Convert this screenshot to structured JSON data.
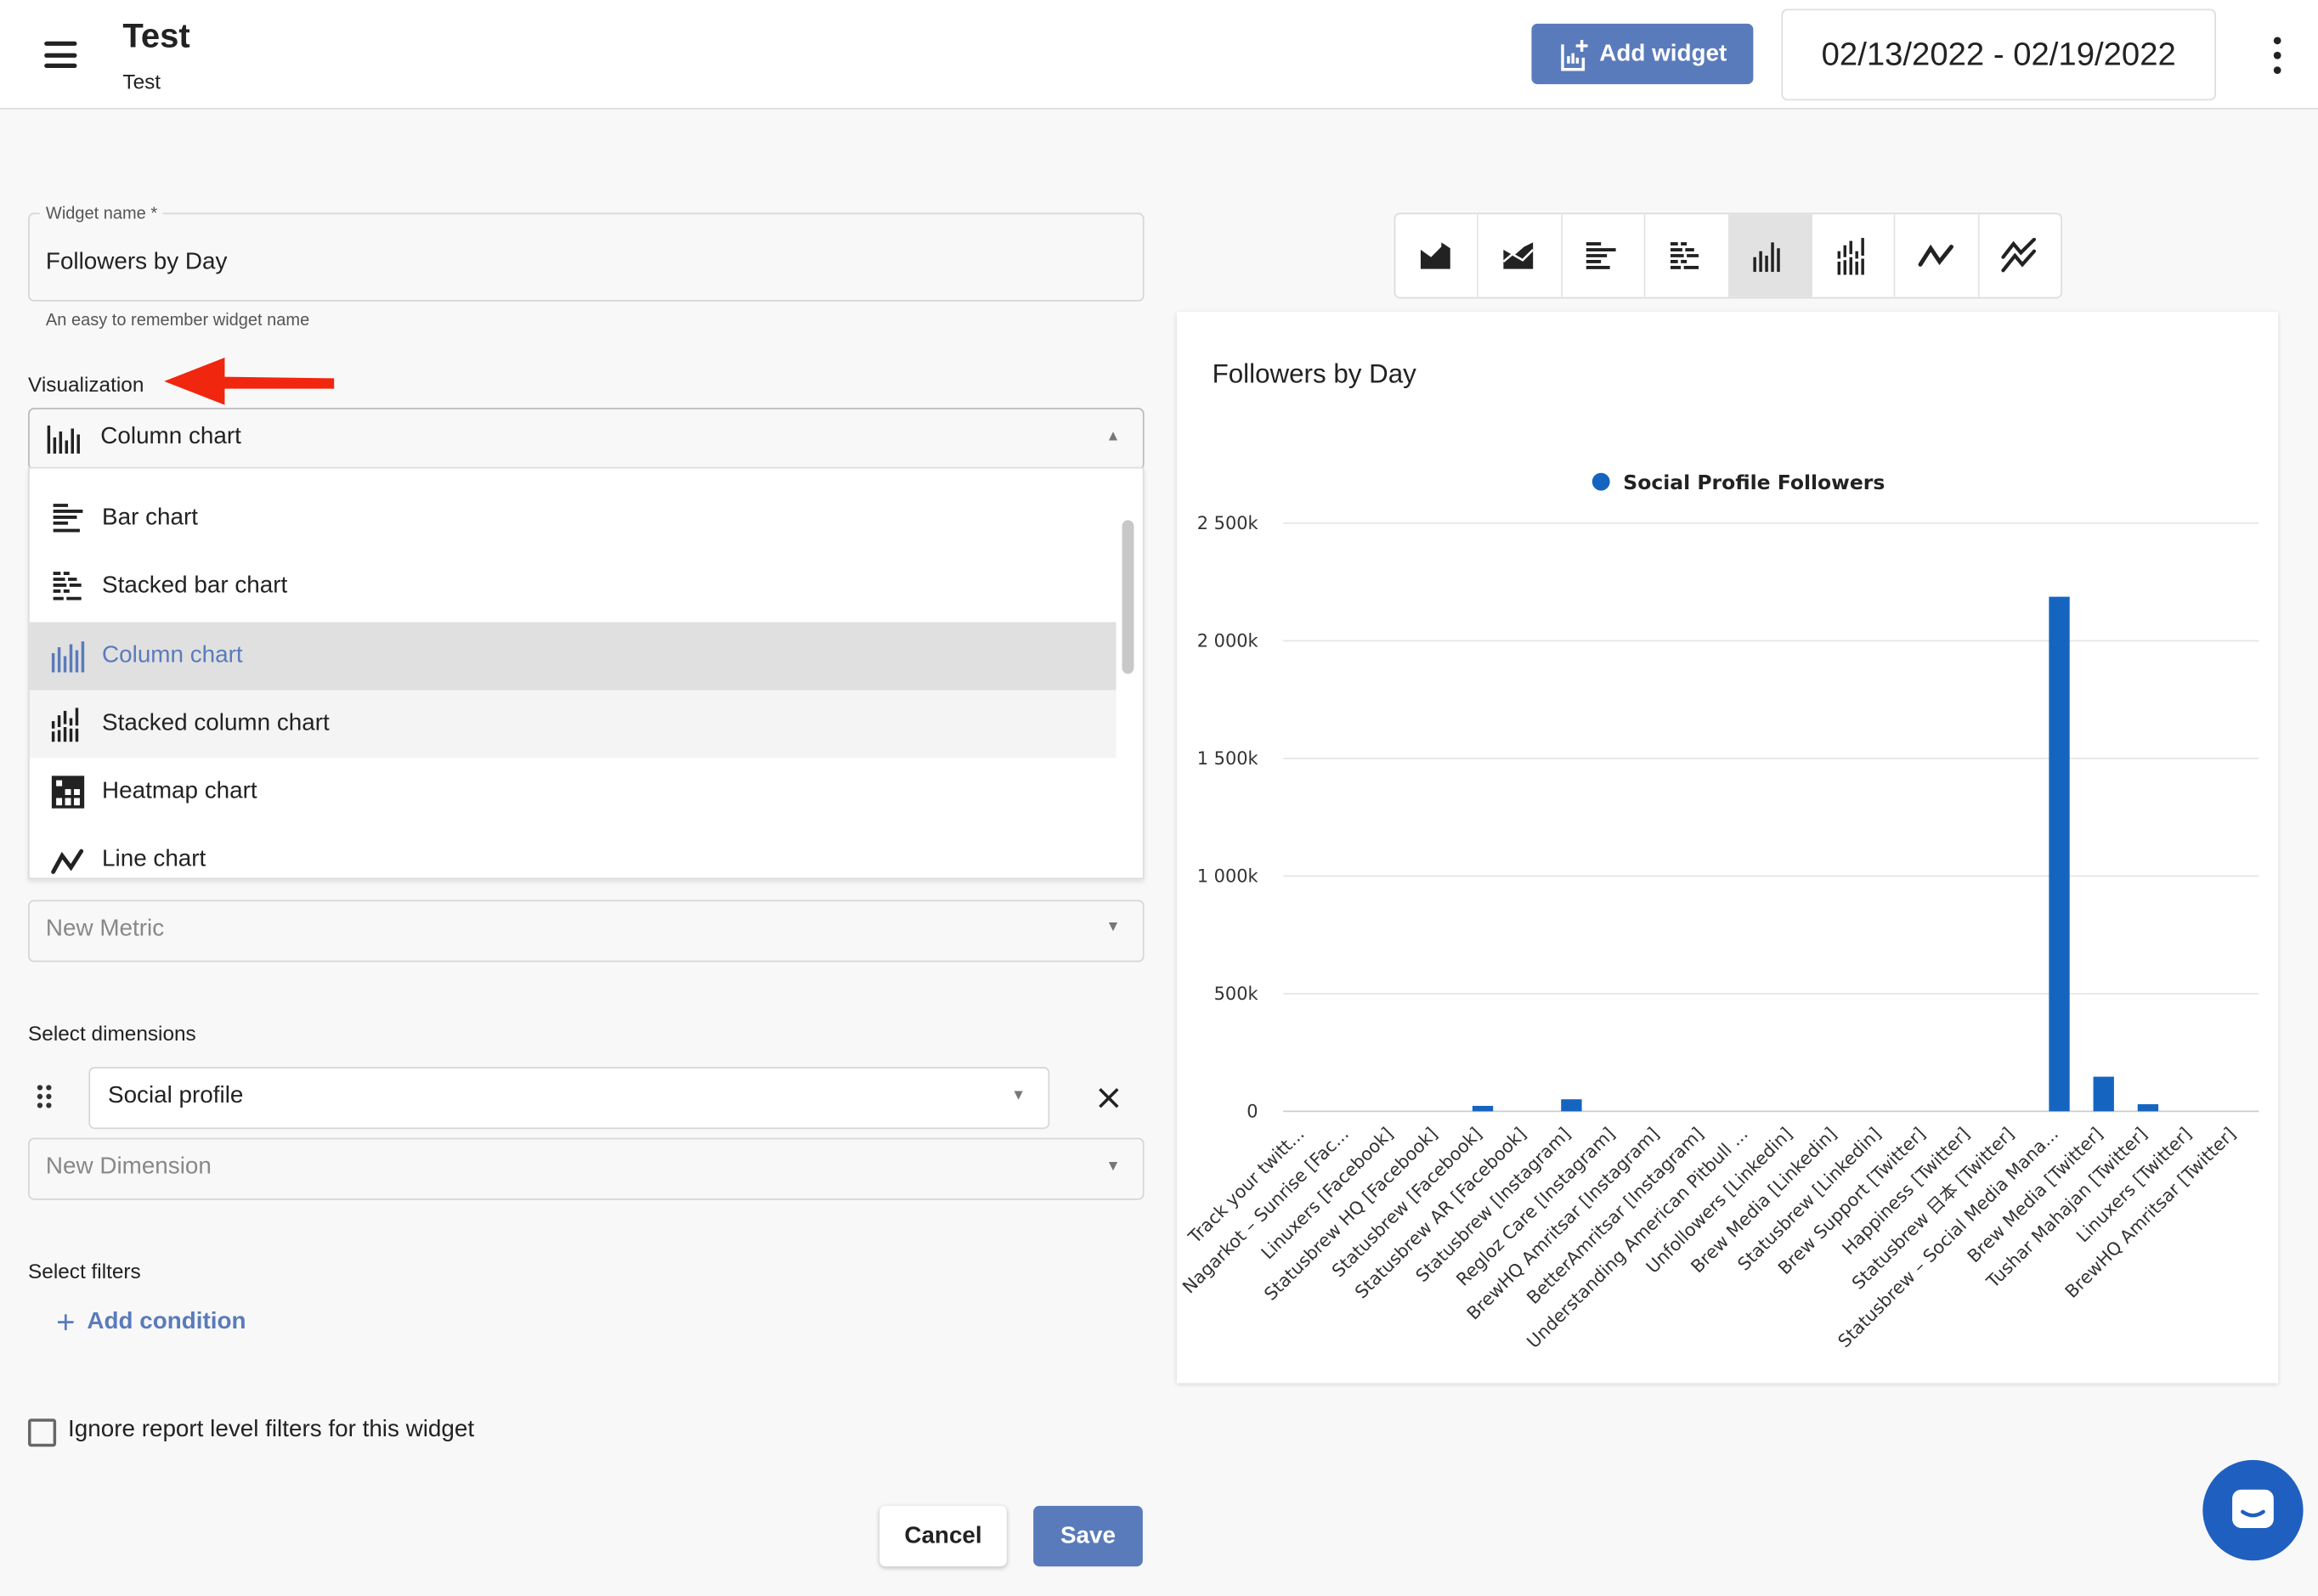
{
  "header": {
    "title": "Test",
    "subtitle": "Test",
    "add_widget": "Add widget",
    "date_range": "02/13/2022 - 02/19/2022"
  },
  "form": {
    "widget_name_label": "Widget name *",
    "widget_name_value": "Followers by Day",
    "widget_name_hint": "An easy to remember widget name",
    "visualization_label": "Visualization",
    "visualization_value": "Column chart",
    "options": [
      {
        "label": "Bar chart",
        "icon": "bar-chart-icon"
      },
      {
        "label": "Stacked bar chart",
        "icon": "stacked-bar-chart-icon"
      },
      {
        "label": "Column chart",
        "icon": "column-chart-icon",
        "selected": true
      },
      {
        "label": "Stacked column chart",
        "icon": "stacked-column-chart-icon",
        "hovered": true
      },
      {
        "label": "Heatmap chart",
        "icon": "heatmap-chart-icon"
      },
      {
        "label": "Line chart",
        "icon": "line-chart-icon"
      }
    ],
    "metric_placeholder": "New Metric",
    "dimensions_label": "Select dimensions",
    "dimension_value": "Social profile",
    "dimension_placeholder": "New Dimension",
    "filters_label": "Select filters",
    "add_condition": "Add condition",
    "ignore_filters_label": "Ignore report level filters for this widget",
    "ignore_filters_checked": false,
    "cancel": "Cancel",
    "save": "Save"
  },
  "chart_toolbar": [
    "area-chart-icon",
    "stacked-area-chart-icon",
    "bar-chart-icon",
    "stacked-bar-chart-icon",
    "column-chart-icon",
    "stacked-column-chart-icon",
    "line-chart-icon",
    "multi-line-chart-icon"
  ],
  "chart_toolbar_active": "column-chart-icon",
  "colors": {
    "accent": "#5a7bbb",
    "series": "#1565c0",
    "arrow": "#f0260f"
  },
  "chart_data": {
    "type": "bar",
    "title": "Followers by Day",
    "legend": "top",
    "grid": true,
    "ylim": [
      0,
      2500000
    ],
    "yticks": [
      {
        "v": 0,
        "label": "0"
      },
      {
        "v": 500000,
        "label": "500k"
      },
      {
        "v": 1000000,
        "label": "1 000k"
      },
      {
        "v": 1500000,
        "label": "1 500k"
      },
      {
        "v": 2000000,
        "label": "2 000k"
      },
      {
        "v": 2500000,
        "label": "2 500k"
      }
    ],
    "categories": [
      "Track your twitt...",
      "Nagarkot – Sunrise [Fac...",
      "Linuxers [Facebook]",
      "Statusbrew HQ [Facebook]",
      "Statusbrew [Facebook]",
      "Statusbrew AR [Facebook]",
      "Statusbrew [Instagram]",
      "Regloz Care [Instagram]",
      "BrewHQ Amritsar [Instagram]",
      "BetterAmritsar [Instagram]",
      "Understanding American Pitbull ...",
      "Unfollowers [Linkedin]",
      "Brew Media [Linkedin]",
      "Statusbrew [Linkedin]",
      "Brew Support [Twitter]",
      "Happiness [Twitter]",
      "Statusbrew 日本 [Twitter]",
      "Statusbrew – Social Media Mana...",
      "Brew Media [Twitter]",
      "Tushar Mahajan [Twitter]",
      "Linuxers [Twitter]",
      "BrewHQ Amritsar [Twitter]"
    ],
    "series": [
      {
        "name": "Social Profile Followers",
        "values": [
          0,
          0,
          0,
          0,
          23000,
          0,
          51000,
          0,
          0,
          0,
          0,
          0,
          0,
          0,
          0,
          0,
          0,
          2187000,
          147000,
          30000,
          0,
          0
        ]
      }
    ]
  }
}
